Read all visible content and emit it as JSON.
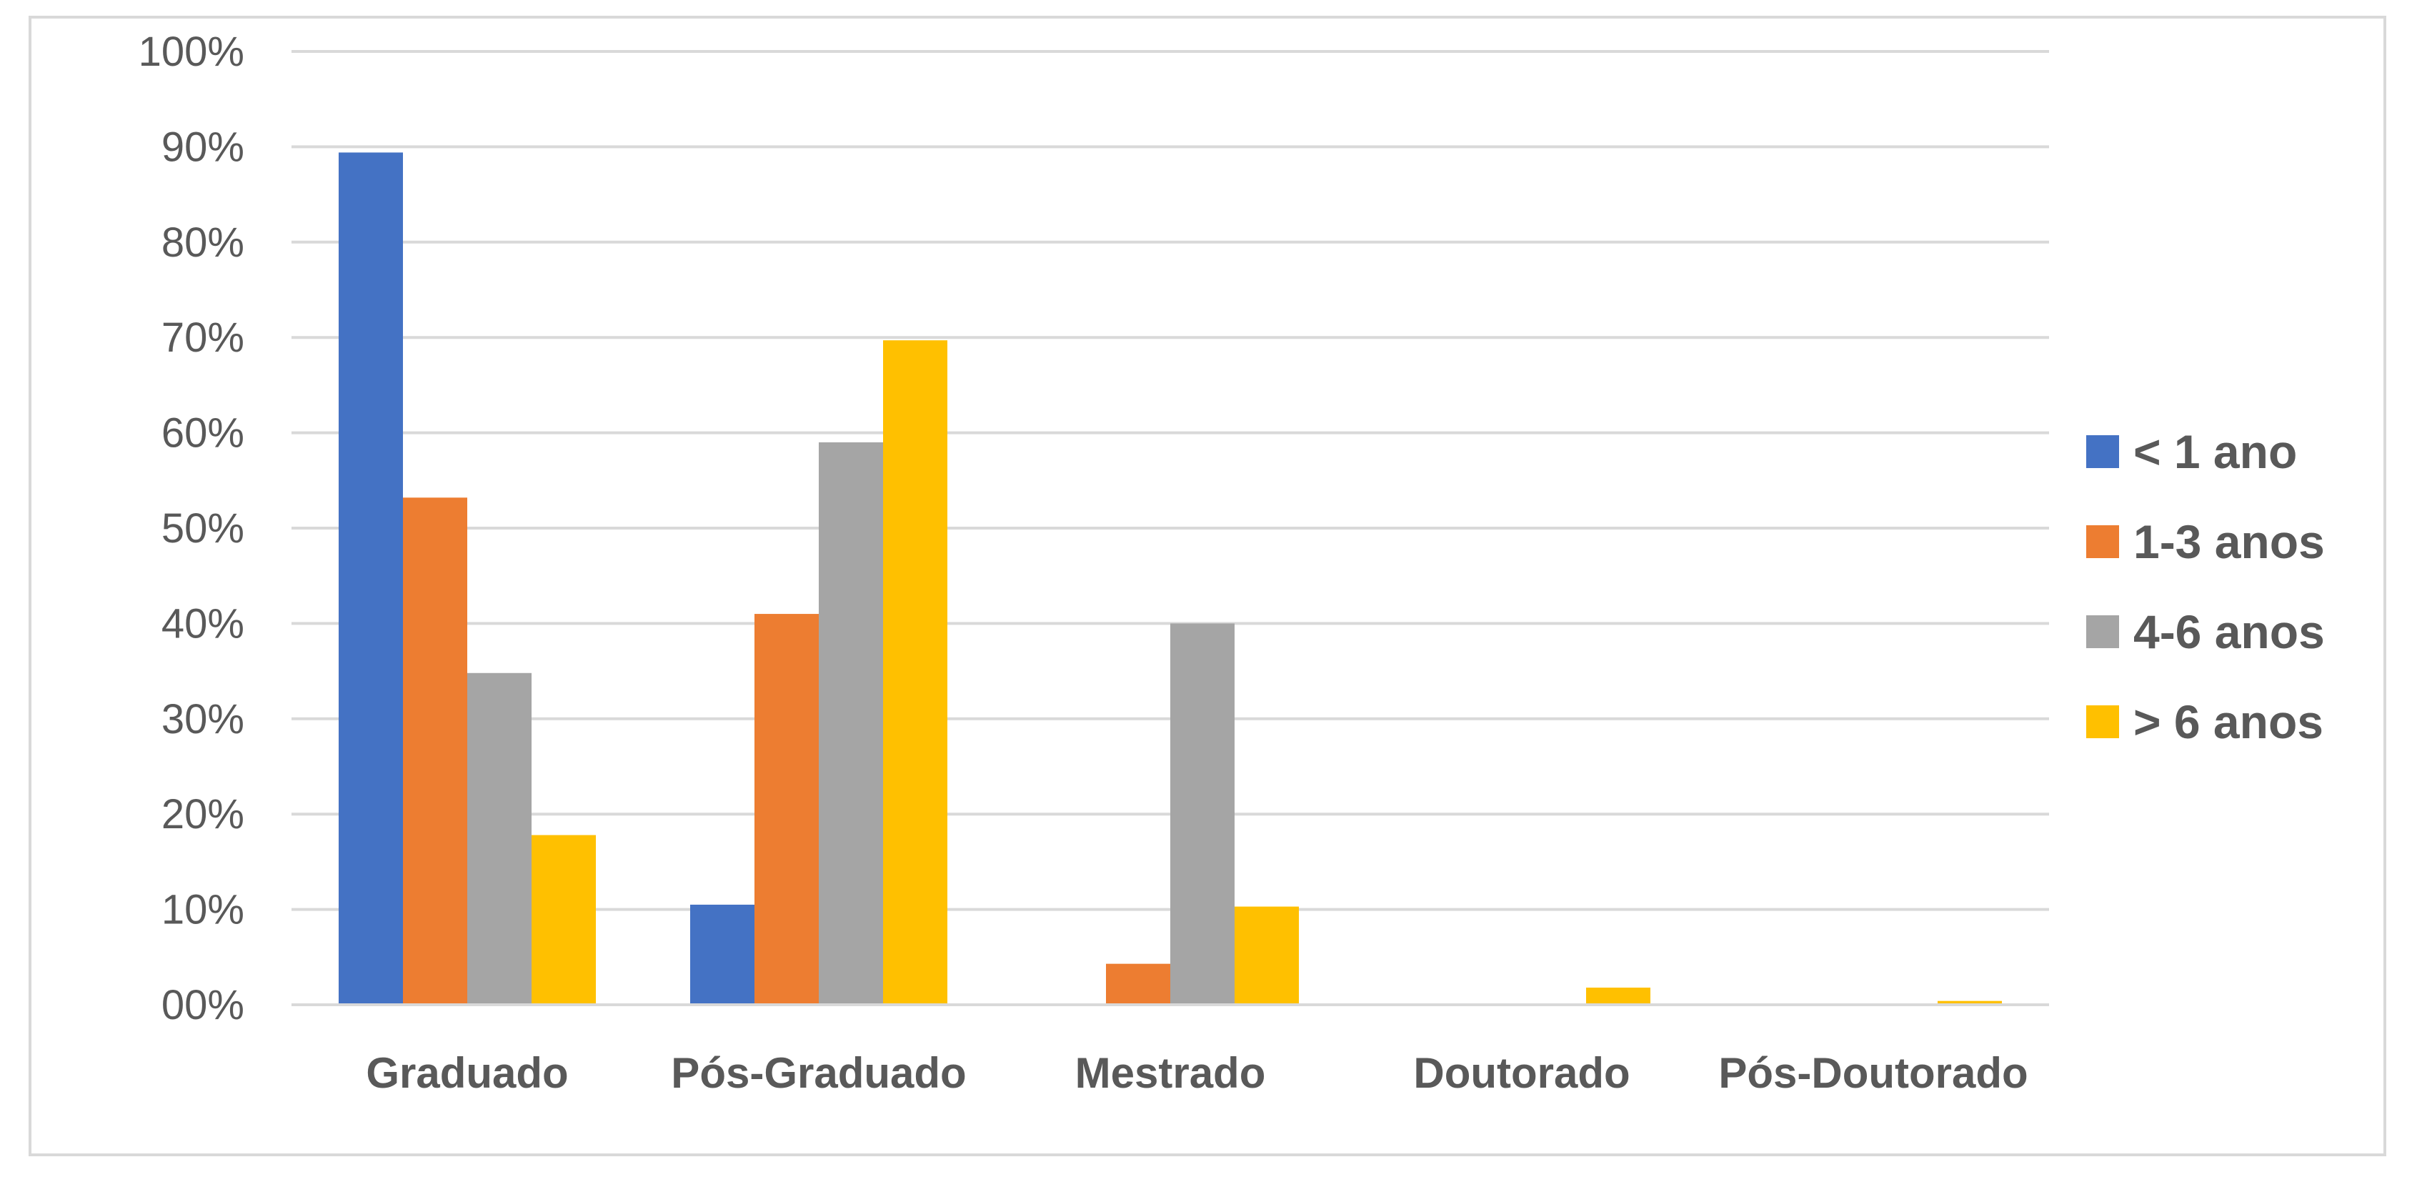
{
  "chart_data": {
    "type": "bar",
    "categories": [
      "Graduado",
      "Pós-Graduado",
      "Mestrado",
      "Doutorado",
      "Pós-Doutorado"
    ],
    "series": [
      {
        "name": "< 1 ano",
        "color": "#4472c4",
        "values": [
          0.894,
          0.105,
          0.0,
          0.0,
          0.0
        ]
      },
      {
        "name": "1-3 anos",
        "color": "#ed7d31",
        "values": [
          0.532,
          0.41,
          0.043,
          0.0,
          0.0
        ]
      },
      {
        "name": "4-6 anos",
        "color": "#a5a5a5",
        "values": [
          0.348,
          0.59,
          0.4,
          0.0,
          0.0
        ]
      },
      {
        "name": "> 6 anos",
        "color": "#ffc000",
        "values": [
          0.178,
          0.697,
          0.103,
          0.018,
          0.004
        ]
      }
    ],
    "yticks": [
      "00%",
      "10%",
      "20%",
      "30%",
      "40%",
      "50%",
      "60%",
      "70%",
      "80%",
      "90%",
      "100%"
    ],
    "ylim": [
      0,
      1
    ],
    "grid": true,
    "legend_position": "right",
    "title": "",
    "xlabel": "",
    "ylabel": ""
  }
}
